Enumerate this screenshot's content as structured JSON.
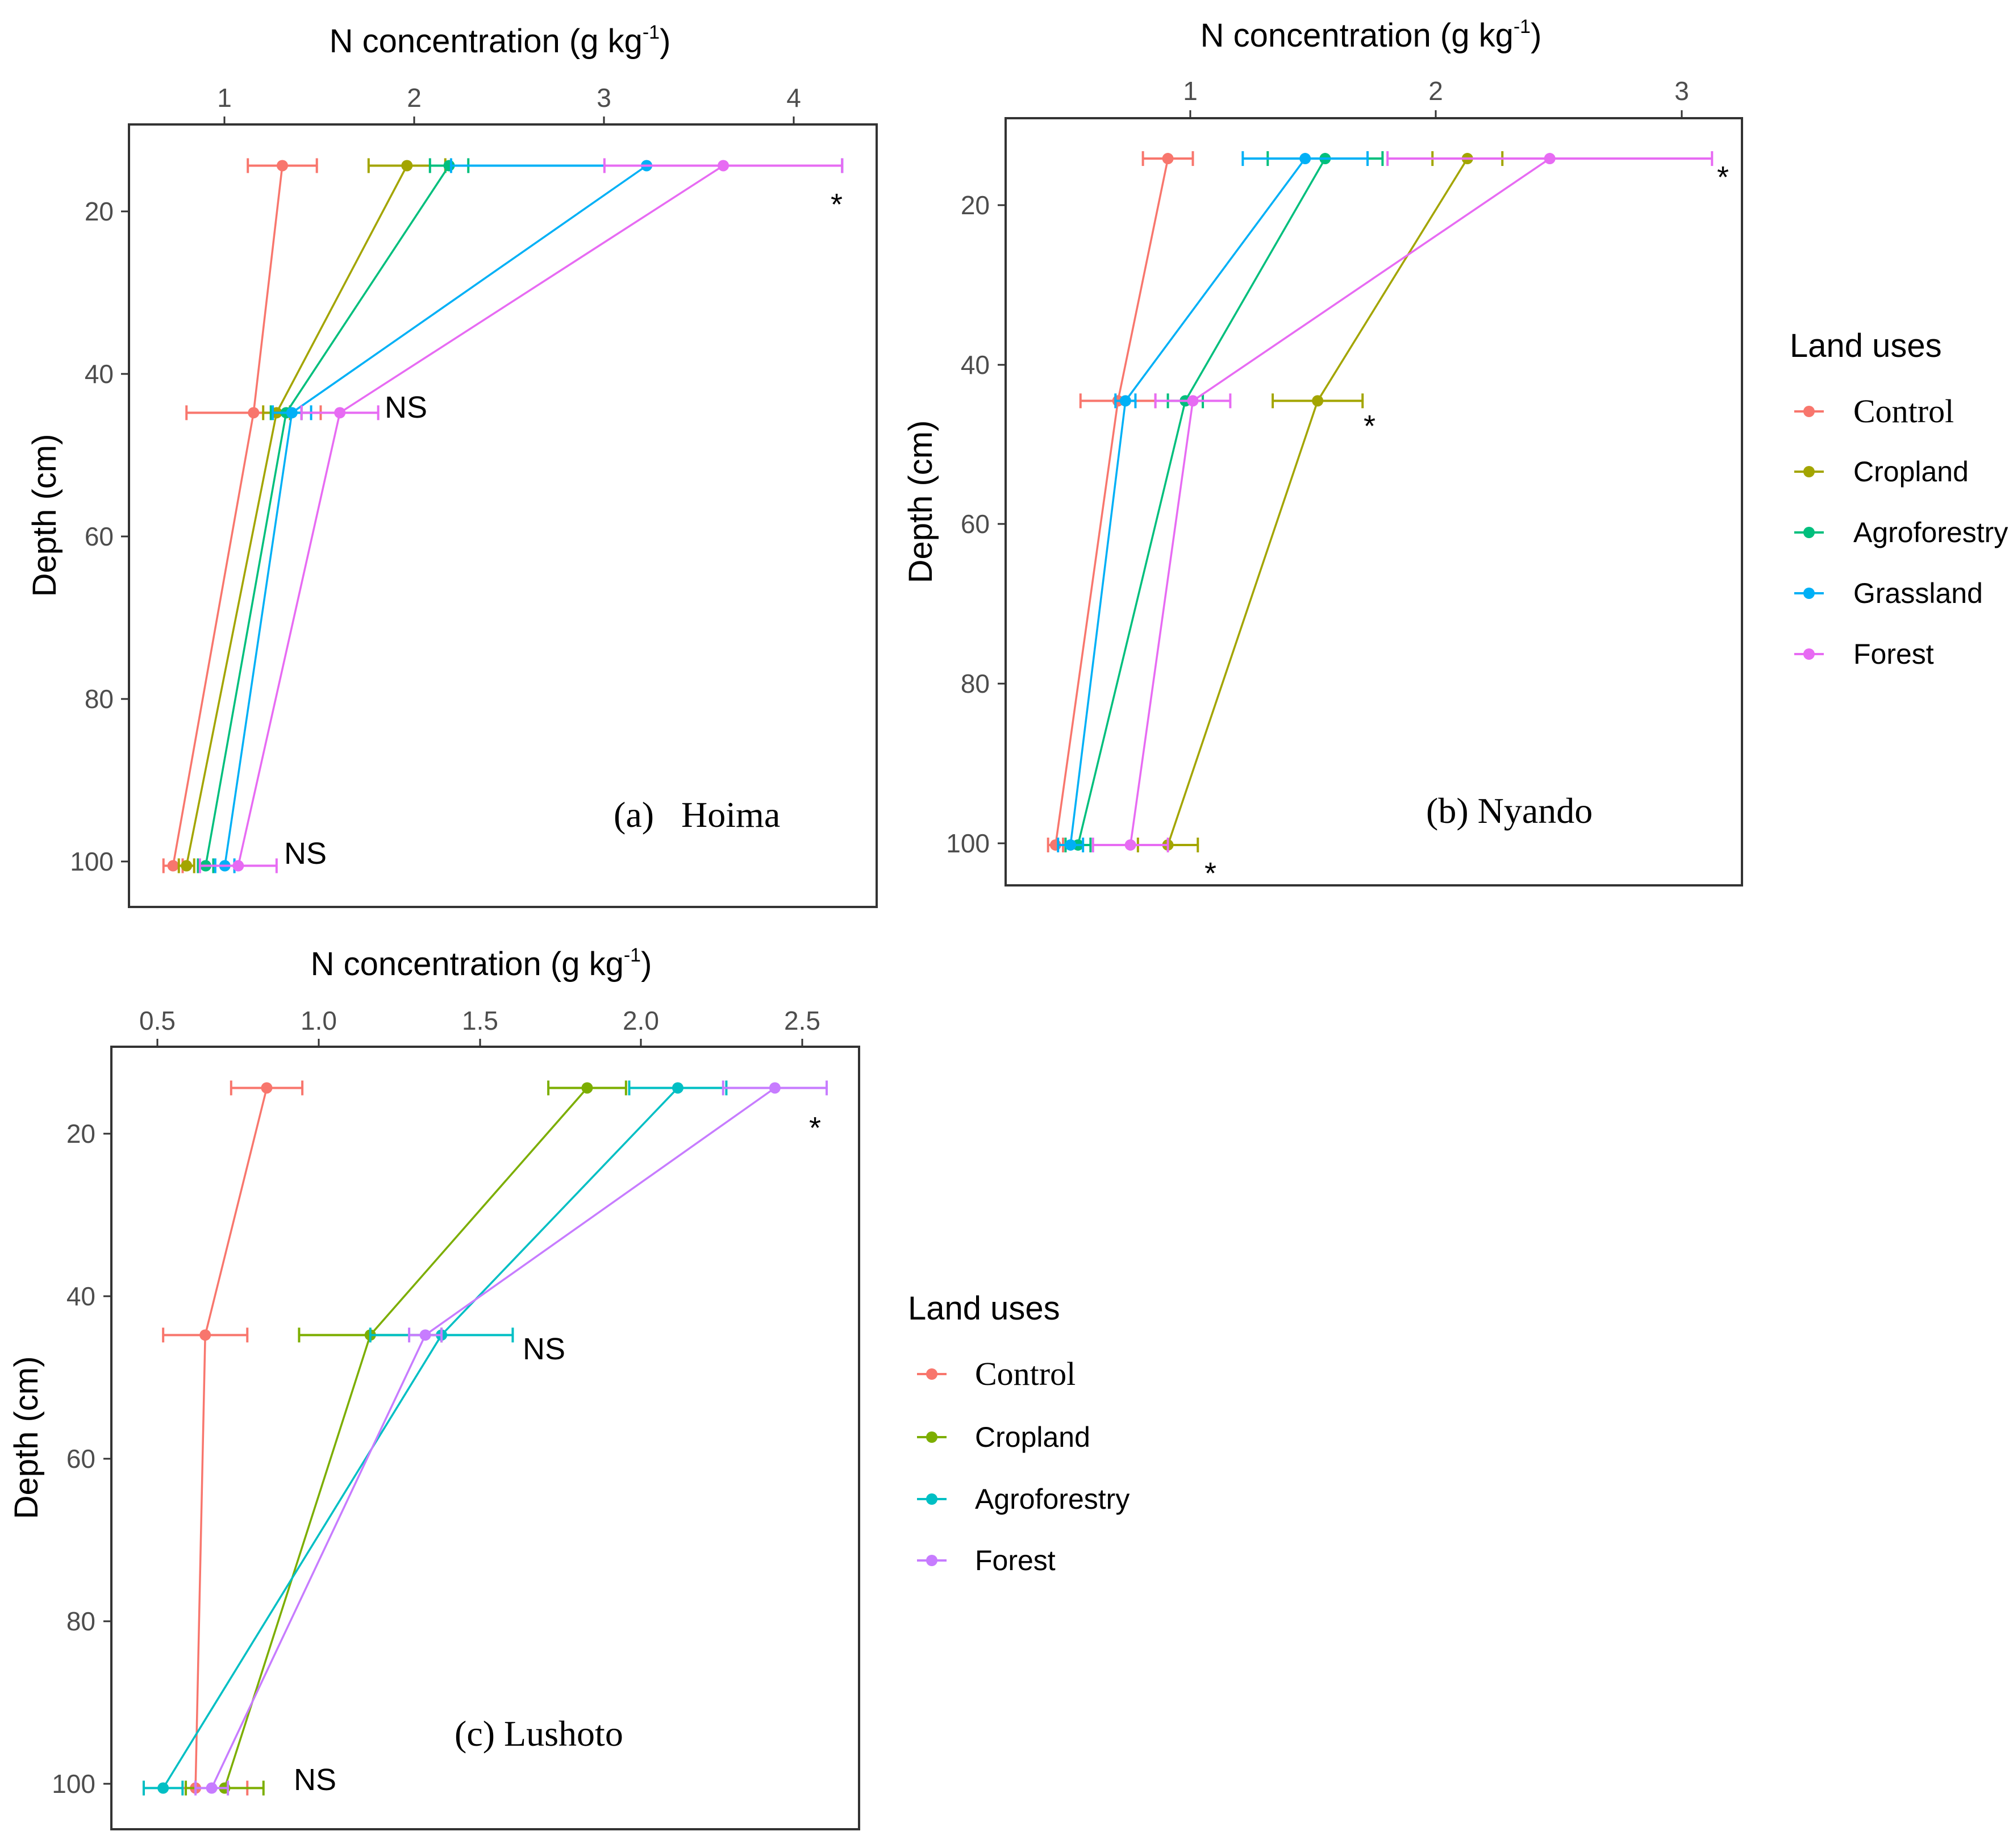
{
  "chart_data": [
    {
      "type": "line",
      "panel_label": "(a)   Hoima",
      "xlabel_main": "N concentration (g kg",
      "xlabel_sup": "-1",
      "xlabel_end": ")",
      "ylabel": "Depth (cm)",
      "xlim": [
        0.5,
        4.4
      ],
      "ylim": [
        10,
        105
      ],
      "x_ticks": [
        1,
        2,
        3,
        4
      ],
      "y_ticks": [
        20,
        40,
        60,
        80,
        100
      ],
      "grid": false,
      "legend": "none",
      "series": [
        {
          "name": "Control",
          "color": "#F8766D",
          "points": [
            {
              "x": 1.3,
              "y": 15,
              "err": 0.18
            },
            {
              "x": 1.15,
              "y": 45,
              "err": 0.35
            },
            {
              "x": 0.73,
              "y": 100,
              "err": 0.05
            }
          ]
        },
        {
          "name": "Cropland",
          "color": "#A3A500",
          "points": [
            {
              "x": 1.95,
              "y": 15,
              "err": 0.2
            },
            {
              "x": 1.27,
              "y": 45,
              "err": 0.07
            },
            {
              "x": 0.8,
              "y": 100,
              "err": 0.04
            }
          ]
        },
        {
          "name": "Agroforestry",
          "color": "#00BF7D",
          "points": [
            {
              "x": 2.17,
              "y": 15,
              "err": 0.1
            },
            {
              "x": 1.32,
              "y": 45,
              "err": 0.08
            },
            {
              "x": 0.9,
              "y": 100,
              "err": 0.04
            }
          ]
        },
        {
          "name": "Grassland",
          "color": "#00B0F6",
          "points": [
            {
              "x": 3.2,
              "y": 15,
              "err": 1.02
            },
            {
              "x": 1.35,
              "y": 45,
              "err": 0.1
            },
            {
              "x": 1.0,
              "y": 100,
              "err": 0.05
            }
          ]
        },
        {
          "name": "Forest",
          "color": "#E76BF3",
          "points": [
            {
              "x": 3.6,
              "y": 15,
              "err": 0.62
            },
            {
              "x": 1.6,
              "y": 45,
              "err": 0.2
            },
            {
              "x": 1.07,
              "y": 100,
              "err": 0.2
            }
          ]
        }
      ],
      "annotations": [
        {
          "text": "*",
          "x": 4.22,
          "y": 17
        },
        {
          "text": "NS",
          "x": 1.85,
          "y": 44
        },
        {
          "text": "NS",
          "x": 1.3,
          "y": 99
        }
      ]
    },
    {
      "type": "line",
      "panel_label": "(b) Nyando",
      "xlabel_main": "N concentration (g kg",
      "xlabel_sup": "-1",
      "xlabel_end": ")",
      "ylabel": "Depth (cm)",
      "xlim": [
        0.25,
        3.2
      ],
      "ylim": [
        10,
        105
      ],
      "x_ticks": [
        1,
        2,
        3
      ],
      "y_ticks": [
        20,
        40,
        60,
        80,
        100
      ],
      "grid": false,
      "legend": "right",
      "series": [
        {
          "name": "Control",
          "color": "#F8766D",
          "points": [
            {
              "x": 0.9,
              "y": 15,
              "err": 0.1
            },
            {
              "x": 0.7,
              "y": 45,
              "err": 0.15
            },
            {
              "x": 0.45,
              "y": 100,
              "err": 0.03
            }
          ]
        },
        {
          "name": "Cropland",
          "color": "#A3A500",
          "points": [
            {
              "x": 2.1,
              "y": 15,
              "err": 0.14
            },
            {
              "x": 1.5,
              "y": 45,
              "err": 0.18
            },
            {
              "x": 0.9,
              "y": 100,
              "err": 0.12
            }
          ]
        },
        {
          "name": "Agroforestry",
          "color": "#00BF7D",
          "points": [
            {
              "x": 1.53,
              "y": 15,
              "err": 0.23
            },
            {
              "x": 0.97,
              "y": 45,
              "err": 0.07
            },
            {
              "x": 0.54,
              "y": 100,
              "err": 0.05
            }
          ]
        },
        {
          "name": "Grassland",
          "color": "#00B0F6",
          "points": [
            {
              "x": 1.45,
              "y": 15,
              "err": 0.25
            },
            {
              "x": 0.73,
              "y": 45,
              "err": 0.04
            },
            {
              "x": 0.51,
              "y": 100,
              "err": 0.05
            }
          ]
        },
        {
          "name": "Forest",
          "color": "#E76BF3",
          "points": [
            {
              "x": 2.43,
              "y": 15,
              "err": 0.65
            },
            {
              "x": 1.0,
              "y": 45,
              "err": 0.15
            },
            {
              "x": 0.75,
              "y": 100,
              "err": 0.15
            }
          ]
        }
      ],
      "annotations": [
        {
          "text": "*",
          "x": 3.15,
          "y": 17
        },
        {
          "text": "*",
          "x": 1.73,
          "y": 48
        },
        {
          "text": "*",
          "x": 1.07,
          "y": 104
        }
      ],
      "legend_title": "Land uses",
      "legend_items": [
        "Control",
        "Cropland",
        "Agroforestry",
        "Grassland",
        "Forest"
      ]
    },
    {
      "type": "line",
      "panel_label": "(c) Lushoto",
      "xlabel_main": "N concentration (g kg",
      "xlabel_sup": "-1",
      "xlabel_end": ")",
      "ylabel": "Depth (cm)",
      "xlim": [
        0.36,
        2.67
      ],
      "ylim": [
        10,
        105
      ],
      "x_ticks": [
        0.5,
        1.0,
        1.5,
        2.0,
        2.5
      ],
      "x_tick_labels": [
        "0.5",
        "1.0",
        "1.5",
        "2.0",
        "2.5"
      ],
      "y_ticks": [
        20,
        40,
        60,
        80,
        100
      ],
      "grid": false,
      "legend": "right",
      "series": [
        {
          "name": "Control",
          "color": "#F8766D",
          "points": [
            {
              "x": 0.84,
              "y": 15,
              "err": 0.11
            },
            {
              "x": 0.65,
              "y": 45,
              "err": 0.13
            },
            {
              "x": 0.62,
              "y": 100,
              "err": 0.16
            }
          ]
        },
        {
          "name": "Cropland",
          "color": "#7CAE00",
          "points": [
            {
              "x": 1.83,
              "y": 15,
              "err": 0.12
            },
            {
              "x": 1.16,
              "y": 45,
              "err": 0.22
            },
            {
              "x": 0.71,
              "y": 100,
              "err": 0.12
            }
          ]
        },
        {
          "name": "Agroforestry",
          "color": "#00BFC4",
          "points": [
            {
              "x": 2.11,
              "y": 15,
              "err": 0.15
            },
            {
              "x": 1.38,
              "y": 45,
              "err": 0.22
            },
            {
              "x": 0.52,
              "y": 100,
              "err": 0.06
            }
          ]
        },
        {
          "name": "Forest",
          "color": "#C77CFF",
          "points": [
            {
              "x": 2.41,
              "y": 15,
              "err": 0.16
            },
            {
              "x": 1.33,
              "y": 45,
              "err": 0.05
            },
            {
              "x": 0.67,
              "y": 100,
              "err": 0.05
            }
          ]
        }
      ],
      "annotations": [
        {
          "text": "*",
          "x": 2.56,
          "y": 18
        },
        {
          "text": "NS",
          "x": 1.57,
          "y": 45
        },
        {
          "text": "NS",
          "x": 0.97,
          "y": 100
        }
      ],
      "legend_title": "Land uses",
      "legend_items": [
        "Control",
        "Cropland",
        "Agroforestry",
        "Forest"
      ]
    }
  ]
}
